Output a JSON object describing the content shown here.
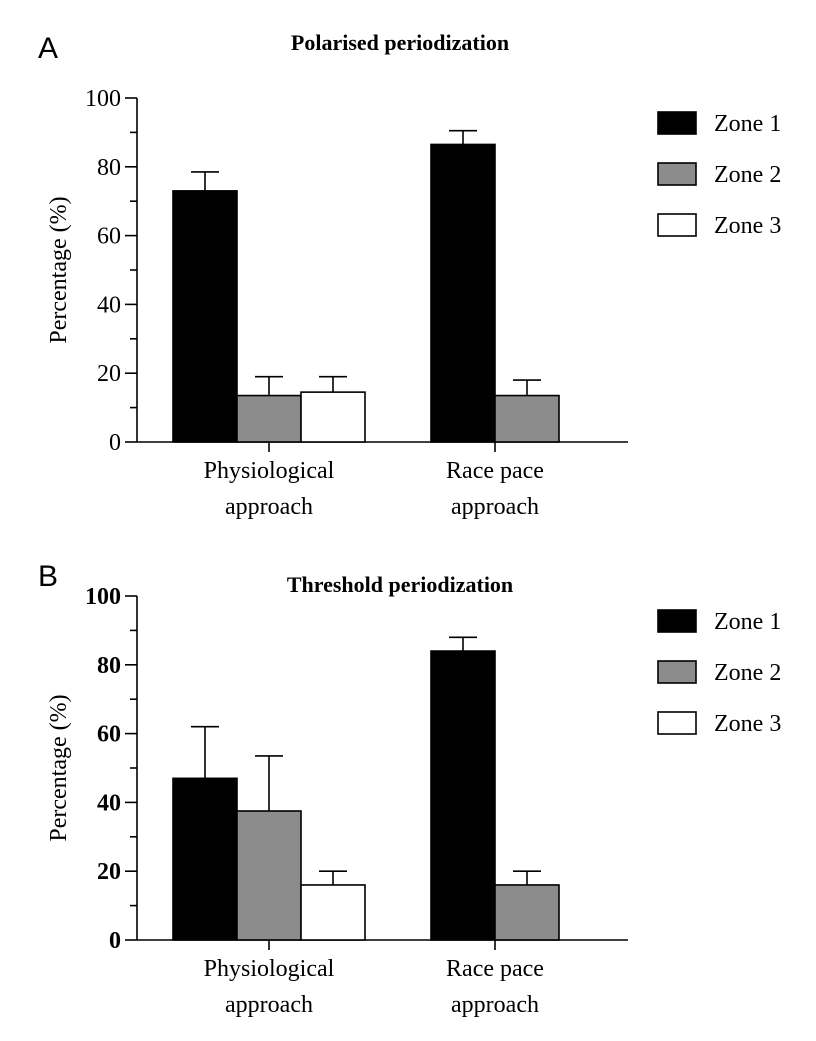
{
  "chart_data": [
    {
      "panel": "A",
      "type": "bar",
      "title": "Polarised periodization",
      "ylabel": "Percentage (%)",
      "ylim": [
        0,
        100
      ],
      "yticks": [
        "0",
        "20",
        "40",
        "60",
        "80",
        "100"
      ],
      "tick_style": "normal",
      "categories": [
        {
          "line1": "Physiological",
          "line2": "approach"
        },
        {
          "line1": "Race pace",
          "line2": "approach"
        }
      ],
      "series": [
        {
          "name": "Zone 1",
          "color": "#000000",
          "values": [
            73,
            86.5
          ],
          "errors": [
            5.5,
            4
          ]
        },
        {
          "name": "Zone 2",
          "color": "#8c8c8c",
          "values": [
            13.5,
            13.5
          ],
          "errors": [
            5.5,
            4.5
          ]
        },
        {
          "name": "Zone 3",
          "color": "#ffffff",
          "values": [
            14.5,
            null
          ],
          "errors": [
            4.5,
            null
          ]
        }
      ],
      "legend_position": "top-right"
    },
    {
      "panel": "B",
      "type": "bar",
      "title": "Threshold periodization",
      "ylabel": "Percentage (%)",
      "ylim": [
        0,
        100
      ],
      "yticks": [
        "0",
        "20",
        "40",
        "60",
        "80",
        "100"
      ],
      "tick_style": "bold",
      "categories": [
        {
          "line1": "Physiological",
          "line2": "approach"
        },
        {
          "line1": "Race pace",
          "line2": "approach"
        }
      ],
      "series": [
        {
          "name": "Zone 1",
          "color": "#000000",
          "values": [
            47,
            84
          ],
          "errors": [
            15,
            4
          ]
        },
        {
          "name": "Zone 2",
          "color": "#8c8c8c",
          "values": [
            37.5,
            16
          ],
          "errors": [
            16,
            4
          ]
        },
        {
          "name": "Zone 3",
          "color": "#ffffff",
          "values": [
            16,
            null
          ],
          "errors": [
            4,
            null
          ]
        }
      ],
      "legend_position": "top-right"
    }
  ]
}
